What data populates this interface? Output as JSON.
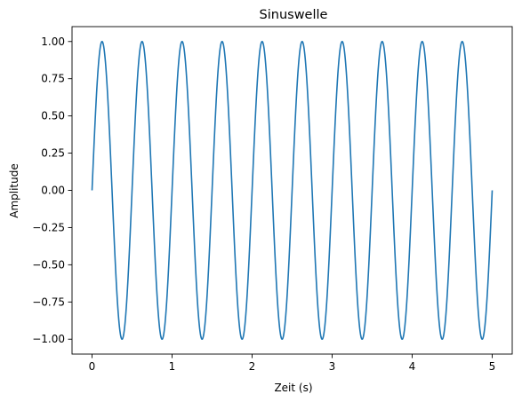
{
  "chart_data": {
    "type": "line",
    "title": "Sinuswelle",
    "xlabel": "Zeit (s)",
    "ylabel": "Amplitude",
    "xlim": [
      -0.25,
      5.25
    ],
    "ylim": [
      -1.1,
      1.1
    ],
    "x_ticks": [
      0,
      1,
      2,
      3,
      4,
      5
    ],
    "x_tick_labels": [
      "0",
      "1",
      "2",
      "3",
      "4",
      "5"
    ],
    "y_ticks": [
      -1.0,
      -0.75,
      -0.5,
      -0.25,
      0.0,
      0.25,
      0.5,
      0.75,
      1.0
    ],
    "y_tick_labels": [
      "−1.00",
      "−0.75",
      "−0.50",
      "−0.25",
      "0.00",
      "0.25",
      "0.50",
      "0.75",
      "1.00"
    ],
    "grid": false,
    "legend": "none",
    "series": [
      {
        "function": "y = sin(2π · 2 · t)",
        "frequency_hz": 2,
        "amplitude": 1.0,
        "x_range": [
          0,
          5
        ],
        "color": "#1f77b4"
      }
    ]
  }
}
